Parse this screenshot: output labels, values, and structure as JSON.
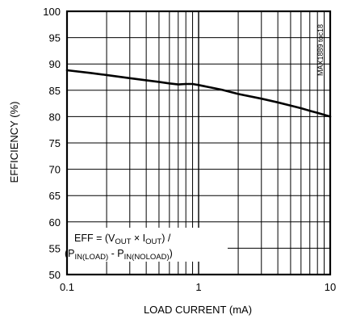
{
  "chart_data": {
    "type": "line",
    "title": "",
    "xlabel": "LOAD CURRENT (mA)",
    "ylabel": "EFFICIENCY (%)",
    "x_scale": "log",
    "xlim": [
      0.1,
      10
    ],
    "ylim": [
      50,
      100
    ],
    "x_ticks": [
      0.1,
      1,
      10
    ],
    "x_tick_labels": [
      "0.1",
      "1",
      "10"
    ],
    "y_ticks": [
      50,
      55,
      60,
      65,
      70,
      75,
      80,
      85,
      90,
      95,
      100
    ],
    "y_tick_labels": [
      "50",
      "55",
      "60",
      "65",
      "70",
      "75",
      "80",
      "85",
      "90",
      "95",
      "100"
    ],
    "grid": true,
    "series": [
      {
        "x": [
          0.1,
          0.15,
          0.2,
          0.3,
          0.4,
          0.5,
          0.6,
          0.7,
          0.8,
          0.9,
          1.0,
          1.5,
          2,
          3,
          4,
          5,
          6,
          7,
          8,
          10
        ],
        "y": [
          88.8,
          88.3,
          87.9,
          87.3,
          86.9,
          86.6,
          86.3,
          86.1,
          86.2,
          86.2,
          86.0,
          85.1,
          84.3,
          83.4,
          82.7,
          82.1,
          81.6,
          81.1,
          80.7,
          80.0
        ]
      }
    ],
    "annotation": {
      "line1": {
        "eq": "EFF = (V",
        "sub1": "OUT",
        "mid": " × I",
        "sub2": "OUT",
        "end": ") /"
      },
      "line2": {
        "open": "(P",
        "sub1": "IN(LOAD)",
        "mid": " - P",
        "sub2": "IN(NOLOAD)",
        "end": ")"
      }
    },
    "side_label": "MAX1889 toc18"
  }
}
